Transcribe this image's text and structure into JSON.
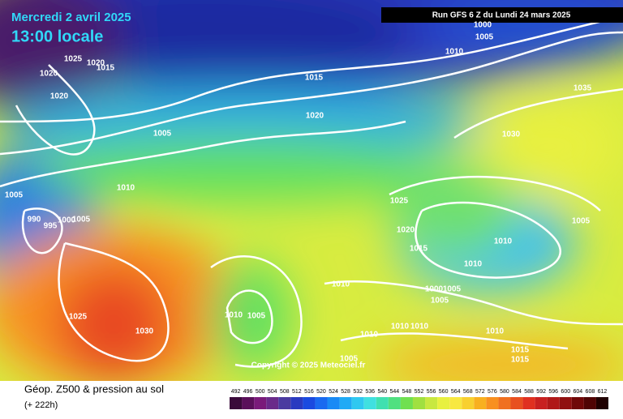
{
  "header": {
    "date": "Mercredi 2 avril 2025",
    "time": "13:00 locale",
    "run": "Run GFS 6 Z du Lundi 24 mars 2025"
  },
  "isobar_labels": [
    "1025",
    "1020",
    "1015",
    "1020",
    "1020",
    "1005",
    "1015",
    "1020",
    "1010",
    "1000",
    "1005",
    "1035",
    "1030",
    "1005",
    "1010",
    "990",
    "995",
    "1000",
    "1005",
    "1025",
    "1020",
    "1015",
    "1010",
    "1010",
    "1005",
    "1010",
    "1000",
    "1005",
    "1005",
    "1025",
    "1030",
    "1010",
    "1005",
    "1010",
    "1010",
    "1010",
    "1010",
    "1015",
    "1015",
    "1005"
  ],
  "copyright": "Copyright © 2025 Meteociel.fr",
  "footer": {
    "title": "Géop. Z500 & pression au sol",
    "lead": "(+ 222h)"
  },
  "legend": {
    "labels": [
      "492",
      "496",
      "500",
      "504",
      "508",
      "512",
      "516",
      "520",
      "524",
      "528",
      "532",
      "536",
      "540",
      "544",
      "548",
      "552",
      "556",
      "560",
      "564",
      "568",
      "572",
      "576",
      "580",
      "584",
      "588",
      "592",
      "596",
      "600",
      "604",
      "608",
      "612"
    ],
    "colors": [
      "#3a0a3a",
      "#5a0f5a",
      "#7a1a7a",
      "#6a2a8a",
      "#4a3aa0",
      "#2a3ac0",
      "#1a4ae0",
      "#1a6af0",
      "#1a8af5",
      "#20aaf5",
      "#30c8f0",
      "#40e0e0",
      "#40e0b0",
      "#50e080",
      "#70e050",
      "#a0e040",
      "#c8e840",
      "#e8f040",
      "#f8e840",
      "#f8d030",
      "#f8b020",
      "#f89020",
      "#f07020",
      "#e85020",
      "#e03020",
      "#c82020",
      "#b01818",
      "#901010",
      "#700808",
      "#500404",
      "#200000"
    ]
  }
}
